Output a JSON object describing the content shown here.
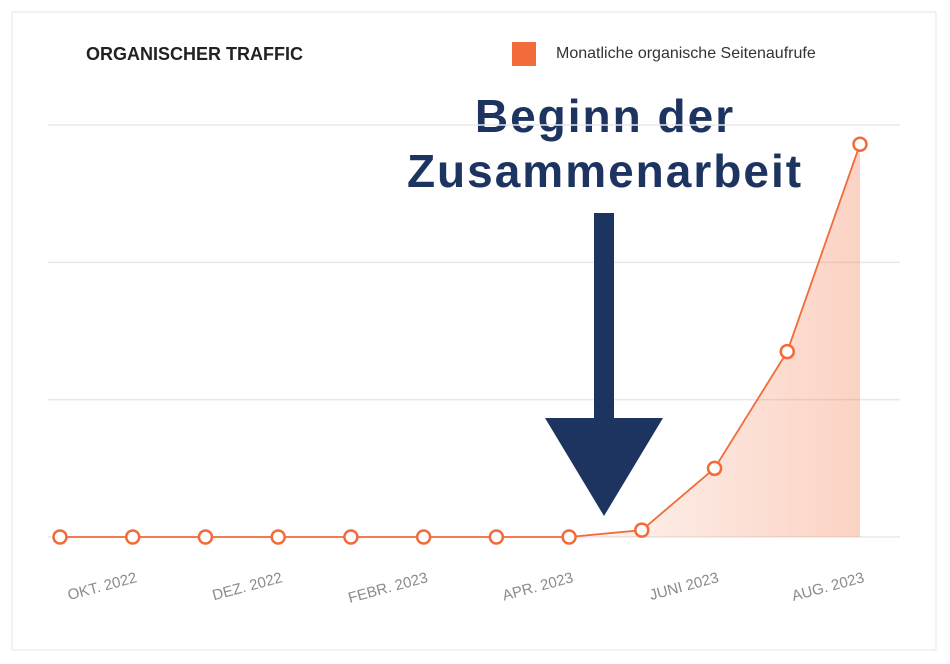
{
  "chart_data": {
    "type": "line",
    "title": "ORGANISCHER TRAFFIC",
    "annotation": [
      "Beginn der",
      "Zusammenarbeit"
    ],
    "categories": [
      null,
      "OKT. 2022",
      null,
      "DEZ. 2022",
      null,
      "FEBR. 2023",
      null,
      "APR. 2023",
      null,
      "JUNI 2023",
      null,
      "AUG. 2023"
    ],
    "series": [
      {
        "name": "Monatliche organische Seitenaufrufe",
        "color": "#f26b3a",
        "values": [
          0,
          0,
          0,
          0,
          0,
          0,
          0,
          0,
          0.05,
          0.5,
          1.35,
          2.86
        ]
      }
    ],
    "ylim": [
      0,
      3
    ],
    "yticks": [
      0,
      1,
      2,
      3
    ],
    "grid": true
  }
}
